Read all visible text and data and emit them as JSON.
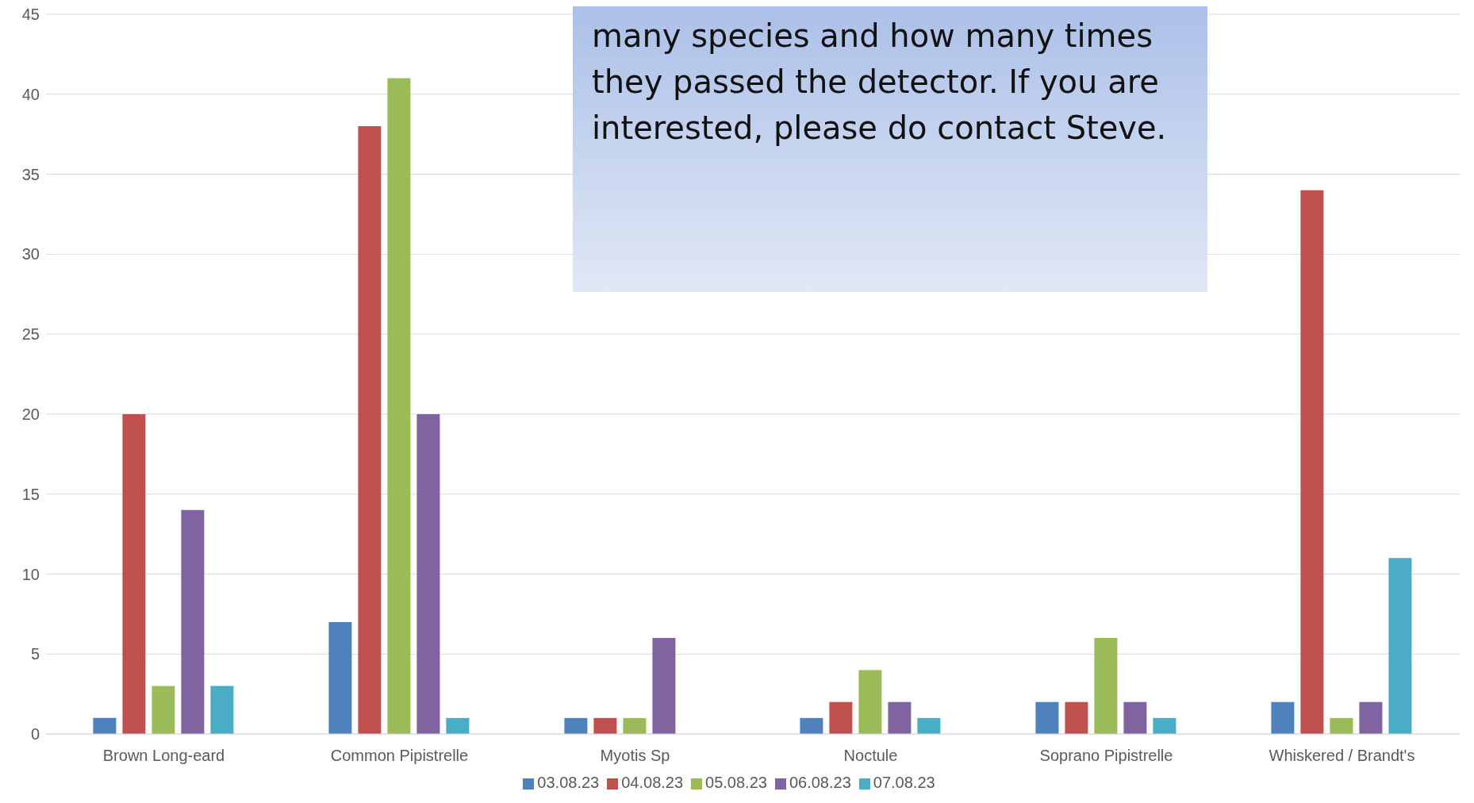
{
  "chart_data": {
    "type": "bar",
    "categories": [
      "Brown Long-eard",
      "Common Pipistrelle",
      "Myotis Sp",
      "Noctule",
      "Soprano Pipistrelle",
      "Whiskered / Brandt's"
    ],
    "series": [
      {
        "name": "03.08.23",
        "color": "#4f81bd",
        "values": [
          1,
          7,
          1,
          1,
          2,
          2
        ]
      },
      {
        "name": "04.08.23",
        "color": "#c0504d",
        "values": [
          20,
          38,
          1,
          2,
          2,
          34
        ]
      },
      {
        "name": "05.08.23",
        "color": "#9bbb59",
        "values": [
          3,
          41,
          1,
          4,
          6,
          1
        ]
      },
      {
        "name": "06.08.23",
        "color": "#8064a2",
        "values": [
          14,
          20,
          6,
          2,
          2,
          2
        ]
      },
      {
        "name": "07.08.23",
        "color": "#4bacc6",
        "values": [
          3,
          1,
          0,
          1,
          1,
          11
        ]
      }
    ],
    "ylim": [
      0,
      45
    ],
    "yticks": [
      0,
      5,
      10,
      15,
      20,
      25,
      30,
      35,
      40,
      45
    ],
    "grid": "y",
    "legend": "bottom",
    "annotations": [
      "many species and how many times they passed the detector. If you are interested, please do contact Steve."
    ]
  }
}
